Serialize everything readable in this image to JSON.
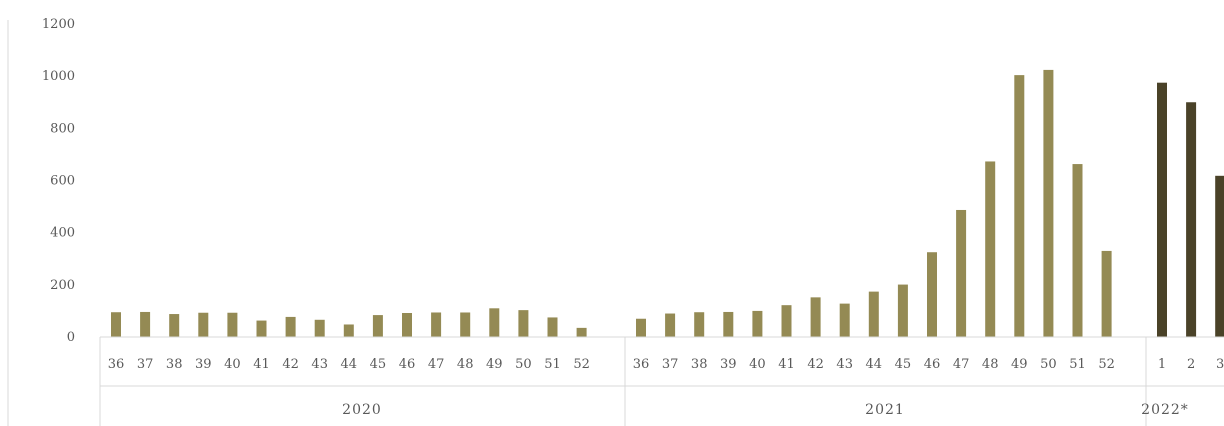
{
  "chart_data": {
    "type": "bar",
    "title_visible_fragment": "",
    "ylim": [
      0,
      1200
    ],
    "yticks": [
      0,
      200,
      400,
      600,
      800,
      1000,
      1200
    ],
    "grid": false,
    "legend": "none",
    "colors": {
      "primary": "#948a54",
      "secondary": "#4a4228",
      "axis": "#d9d9d9",
      "text": "#595959"
    },
    "groups": [
      {
        "label": "2020",
        "color": "#948a54",
        "categories": [
          "36",
          "37",
          "38",
          "39",
          "40",
          "41",
          "42",
          "43",
          "44",
          "45",
          "46",
          "47",
          "48",
          "49",
          "50",
          "51",
          "52"
        ],
        "values": [
          95,
          96,
          88,
          93,
          93,
          63,
          77,
          66,
          48,
          84,
          92,
          94,
          94,
          110,
          103,
          75,
          35
        ]
      },
      {
        "label": "2021",
        "color": "#948a54",
        "categories": [
          "36",
          "37",
          "38",
          "39",
          "40",
          "41",
          "42",
          "43",
          "44",
          "45",
          "46",
          "47",
          "48",
          "49",
          "50",
          "51",
          "52"
        ],
        "values": [
          70,
          90,
          95,
          96,
          100,
          122,
          152,
          128,
          174,
          201,
          325,
          487,
          673,
          1004,
          1024,
          663,
          330
        ]
      },
      {
        "label": "2022*",
        "color": "#4a4228",
        "categories": [
          "1",
          "2",
          "3"
        ],
        "values": [
          975,
          900,
          618
        ]
      }
    ]
  }
}
